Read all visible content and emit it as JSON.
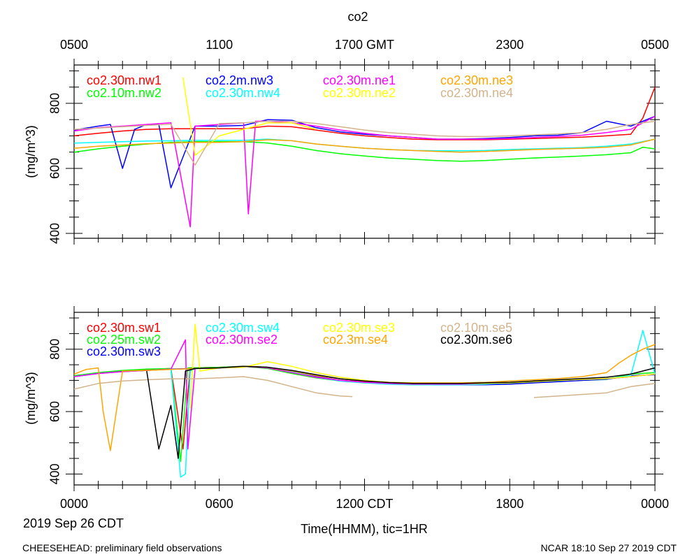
{
  "title": "co2",
  "footer_left": "CHEESEHEAD: preliminary field observations",
  "footer_right": "NCAR 18:10 Sep 27 2019 CDT",
  "date_label": "2019 Sep 26 CDT",
  "xlabel": "Time(HHMM), tic=1HR",
  "colors": {
    "red": "#ff0000",
    "green": "#00ff00",
    "blue": "#0000ff",
    "cyan": "#00ffff",
    "magenta": "#ff00ff",
    "yellow": "#ffff00",
    "orange": "#ffa500",
    "tan": "#d2b48c",
    "black": "#000000"
  },
  "chart_data": [
    {
      "type": "line",
      "panel": "top",
      "title": "co2",
      "ylabel": "(mg/m^3)",
      "ylim": [
        385,
        918
      ],
      "xlim": [
        0,
        24
      ],
      "x_units": "hours CDT from 2019 Sep 26 0000",
      "yticks": [
        400,
        600,
        800
      ],
      "top_axis_ticks": [
        {
          "x": 0,
          "label": "0500"
        },
        {
          "x": 6,
          "label": "1100"
        },
        {
          "x": 12,
          "label": "1700 GMT"
        },
        {
          "x": 18,
          "label": "2300"
        },
        {
          "x": 24,
          "label": "0500"
        }
      ],
      "series": [
        {
          "name": "co2.30m.nw1",
          "color": "#ff0000",
          "x": [
            0,
            1,
            2,
            3,
            4,
            5,
            6,
            7,
            8,
            9,
            10,
            11,
            12,
            13,
            14,
            15,
            16,
            17,
            18,
            19,
            20,
            21,
            22,
            23,
            23.5,
            24
          ],
          "y": [
            700,
            708,
            715,
            720,
            722,
            722,
            722,
            722,
            730,
            728,
            718,
            708,
            700,
            695,
            690,
            688,
            688,
            688,
            690,
            692,
            694,
            696,
            700,
            705,
            755,
            850
          ]
        },
        {
          "name": "co2.10m.nw2",
          "color": "#00ff00",
          "x": [
            0,
            1,
            2,
            3,
            4,
            5,
            6,
            7,
            8,
            9,
            10,
            11,
            12,
            13,
            14,
            15,
            16,
            17,
            18,
            19,
            20,
            21,
            22,
            23,
            23.5,
            24
          ],
          "y": [
            650,
            660,
            668,
            675,
            680,
            682,
            682,
            682,
            678,
            668,
            655,
            645,
            638,
            632,
            628,
            624,
            622,
            624,
            628,
            632,
            635,
            638,
            642,
            648,
            665,
            660
          ]
        },
        {
          "name": "co2.2m.nw3",
          "color": "#0000ff",
          "x": [
            0,
            1,
            1.5,
            2,
            2.5,
            3,
            3.5,
            4,
            5,
            6,
            7,
            8,
            9,
            10,
            11,
            12,
            13,
            14,
            15,
            16,
            17,
            18,
            19,
            20,
            21,
            22,
            23,
            24
          ],
          "y": [
            718,
            730,
            735,
            600,
            720,
            735,
            735,
            540,
            730,
            730,
            732,
            750,
            748,
            725,
            712,
            705,
            700,
            695,
            690,
            690,
            692,
            695,
            700,
            702,
            710,
            745,
            730,
            760
          ]
        },
        {
          "name": "co2.30m.nw4",
          "color": "#00ffff",
          "x": [
            0,
            1,
            2,
            3,
            4,
            5,
            6,
            7,
            8,
            9,
            10,
            11,
            12,
            13,
            14,
            15,
            16,
            17,
            18,
            19,
            20,
            21,
            22,
            23,
            24
          ],
          "y": [
            678,
            680,
            682,
            684,
            685,
            686,
            686,
            686,
            690,
            685,
            675,
            668,
            662,
            658,
            655,
            654,
            654,
            655,
            658,
            660,
            662,
            664,
            668,
            675,
            690
          ]
        },
        {
          "name": "co2.30m.ne1",
          "color": "#ff00ff",
          "x": [
            0,
            1,
            2,
            3,
            4,
            4.8,
            5,
            6,
            7,
            7.2,
            7.5,
            8,
            9,
            10,
            11,
            12,
            13,
            14,
            15,
            16,
            17,
            18,
            19,
            20,
            21,
            22,
            23,
            24
          ],
          "y": [
            715,
            725,
            730,
            735,
            740,
            420,
            730,
            735,
            740,
            460,
            745,
            745,
            740,
            730,
            718,
            708,
            700,
            695,
            690,
            690,
            690,
            692,
            695,
            698,
            702,
            710,
            720,
            760
          ]
        },
        {
          "name": "co2.30m.ne2",
          "color": "#ffff00",
          "x": [
            4.5,
            5,
            6,
            7,
            8,
            9,
            10
          ],
          "y": [
            880,
            640,
            700,
            720,
            740,
            740,
            720
          ]
        },
        {
          "name": "co2.30m.ne3",
          "color": "#ffa500",
          "x": [
            0,
            1,
            2,
            3,
            4,
            5,
            6,
            7,
            8,
            9,
            10,
            11,
            12,
            13,
            14,
            15,
            16,
            17,
            18,
            19,
            20,
            21,
            22,
            23,
            24
          ],
          "y": [
            662,
            668,
            672,
            676,
            678,
            680,
            680,
            682,
            688,
            685,
            675,
            668,
            662,
            658,
            655,
            652,
            650,
            652,
            655,
            658,
            660,
            662,
            665,
            672,
            690
          ]
        },
        {
          "name": "co2.30m.ne4",
          "color": "#d2b48c",
          "x": [
            0,
            1,
            2,
            3,
            4,
            5,
            6,
            7,
            8,
            9,
            10,
            11,
            12,
            13,
            14,
            15,
            16,
            17,
            18,
            19,
            20,
            21,
            22,
            23,
            24
          ],
          "y": [
            720,
            724,
            728,
            732,
            736,
            610,
            738,
            740,
            745,
            745,
            738,
            728,
            718,
            710,
            705,
            700,
            698,
            698,
            700,
            703,
            706,
            710,
            720,
            735,
            745
          ]
        }
      ]
    },
    {
      "type": "line",
      "panel": "bottom",
      "ylabel": "(mg/m^3)",
      "xlabel": "Time(HHMM), tic=1HR",
      "ylim": [
        365,
        918
      ],
      "xlim": [
        0,
        24
      ],
      "x_units": "hours CDT from 2019 Sep 26 0000",
      "yticks": [
        400,
        600,
        800
      ],
      "xticks": [
        {
          "x": 0,
          "label": "0000"
        },
        {
          "x": 6,
          "label": "0600"
        },
        {
          "x": 12,
          "label": "1200 CDT"
        },
        {
          "x": 18,
          "label": "1800"
        },
        {
          "x": 24,
          "label": "0000"
        }
      ],
      "series": [
        {
          "name": "co2.30m.sw1",
          "color": "#ff0000",
          "x": [
            0,
            1,
            2,
            3,
            4,
            4.5,
            4.8,
            5,
            6,
            7,
            8,
            9,
            10,
            11,
            12,
            13,
            14,
            15,
            16,
            17,
            18,
            19,
            20,
            21,
            22,
            23,
            24
          ],
          "y": [
            712,
            722,
            730,
            735,
            738,
            480,
            740,
            740,
            742,
            745,
            740,
            725,
            710,
            700,
            695,
            690,
            688,
            688,
            688,
            690,
            692,
            696,
            700,
            702,
            705,
            712,
            720
          ]
        },
        {
          "name": "co2.25m.sw2",
          "color": "#00ff00",
          "x": [
            0,
            1,
            2,
            3,
            4,
            4.4,
            4.7,
            5,
            6,
            7,
            8,
            9,
            10,
            11,
            12,
            13,
            14,
            15,
            16,
            17,
            18,
            19,
            20,
            21,
            22,
            23,
            24
          ],
          "y": [
            715,
            725,
            732,
            736,
            738,
            440,
            740,
            740,
            742,
            745,
            738,
            722,
            708,
            698,
            692,
            688,
            686,
            686,
            686,
            688,
            690,
            694,
            698,
            700,
            703,
            720,
            725
          ]
        },
        {
          "name": "co2.30m.sw3",
          "color": "#0000ff",
          "x": [
            0,
            1,
            2,
            3,
            4,
            5,
            6,
            7,
            8,
            9,
            10,
            11,
            12,
            13,
            14,
            15,
            16,
            17,
            18,
            19,
            20,
            21,
            22,
            23,
            24
          ],
          "y": [
            712,
            722,
            728,
            732,
            736,
            738,
            740,
            745,
            742,
            730,
            712,
            700,
            694,
            690,
            688,
            686,
            686,
            686,
            688,
            692,
            696,
            700,
            704,
            715,
            718
          ]
        },
        {
          "name": "co2.30m.sw4",
          "color": "#00ffff",
          "x": [
            0,
            1,
            2,
            3,
            4,
            4.4,
            4.6,
            4.8,
            5,
            6,
            7,
            8,
            9,
            10,
            11,
            12,
            13,
            14,
            15,
            16,
            17,
            18,
            19,
            20,
            21,
            22,
            23,
            23.5,
            24
          ],
          "y": [
            712,
            722,
            728,
            732,
            736,
            390,
            400,
            730,
            738,
            740,
            745,
            740,
            728,
            710,
            698,
            692,
            688,
            686,
            686,
            686,
            688,
            692,
            696,
            700,
            703,
            706,
            715,
            860,
            720
          ]
        },
        {
          "name": "co2.30m.se2",
          "color": "#ff00ff",
          "x": [
            0,
            1,
            2,
            3,
            4,
            4.6,
            4.7,
            5,
            6,
            7,
            8,
            9,
            10,
            11,
            12,
            13,
            14,
            15,
            16,
            17,
            18,
            19,
            20,
            21,
            22,
            23,
            24
          ],
          "y": [
            712,
            722,
            728,
            732,
            736,
            830,
            480,
            738,
            740,
            745,
            740,
            725,
            710,
            700,
            694,
            690,
            688,
            688,
            688,
            690,
            692,
            696,
            700,
            703,
            706,
            712,
            720
          ]
        },
        {
          "name": "co2.30m.se3",
          "color": "#ffff00",
          "x": [
            4.8,
            5.0,
            5.2,
            6,
            7,
            8,
            9,
            10,
            11,
            12,
            13,
            14,
            15,
            16,
            17,
            18,
            19,
            20,
            21,
            22,
            23,
            24
          ],
          "y": [
            610,
            880,
            730,
            740,
            742,
            760,
            745,
            725,
            710,
            700,
            694,
            690,
            690,
            690,
            690,
            692,
            696,
            700,
            703,
            706,
            712,
            720
          ]
        },
        {
          "name": "co2.3m.se4",
          "color": "#ffa500",
          "x": [
            0,
            0.5,
            1,
            1.2,
            1.5,
            2,
            3,
            4,
            5,
            6,
            7,
            8,
            9,
            10,
            11,
            12,
            13,
            14,
            15,
            16,
            17,
            18,
            19,
            20,
            21,
            22,
            22.5,
            23,
            23.5,
            24
          ],
          "y": [
            720,
            735,
            740,
            600,
            475,
            730,
            732,
            735,
            738,
            740,
            745,
            742,
            730,
            715,
            705,
            698,
            694,
            692,
            692,
            692,
            694,
            698,
            702,
            706,
            712,
            725,
            755,
            780,
            800,
            815
          ]
        },
        {
          "name": "co2.10m.se5",
          "color": "#d2b48c",
          "x": [
            0,
            1,
            2,
            3,
            4,
            5,
            6,
            7,
            8,
            9,
            10,
            11,
            11.5
          ],
          "y": [
            672,
            690,
            698,
            702,
            705,
            705,
            708,
            712,
            700,
            680,
            660,
            650,
            648
          ]
        },
        {
          "name": "co2.10m.se5 (late)",
          "color": "#d2b48c",
          "x": [
            19,
            20,
            21,
            22,
            23,
            24
          ],
          "y": [
            645,
            650,
            655,
            660,
            680,
            690
          ]
        },
        {
          "name": "co2.30m.se6",
          "color": "#000000",
          "x": [
            3,
            3.5,
            4,
            4.3,
            4.6,
            5,
            6,
            7,
            8,
            9,
            10,
            11,
            12,
            13,
            14,
            15,
            16,
            17,
            18,
            19,
            20,
            21,
            22,
            23,
            24
          ],
          "y": [
            730,
            480,
            620,
            450,
            730,
            738,
            740,
            745,
            742,
            732,
            718,
            705,
            698,
            693,
            690,
            690,
            690,
            692,
            694,
            698,
            702,
            706,
            710,
            720,
            740
          ]
        }
      ]
    }
  ]
}
